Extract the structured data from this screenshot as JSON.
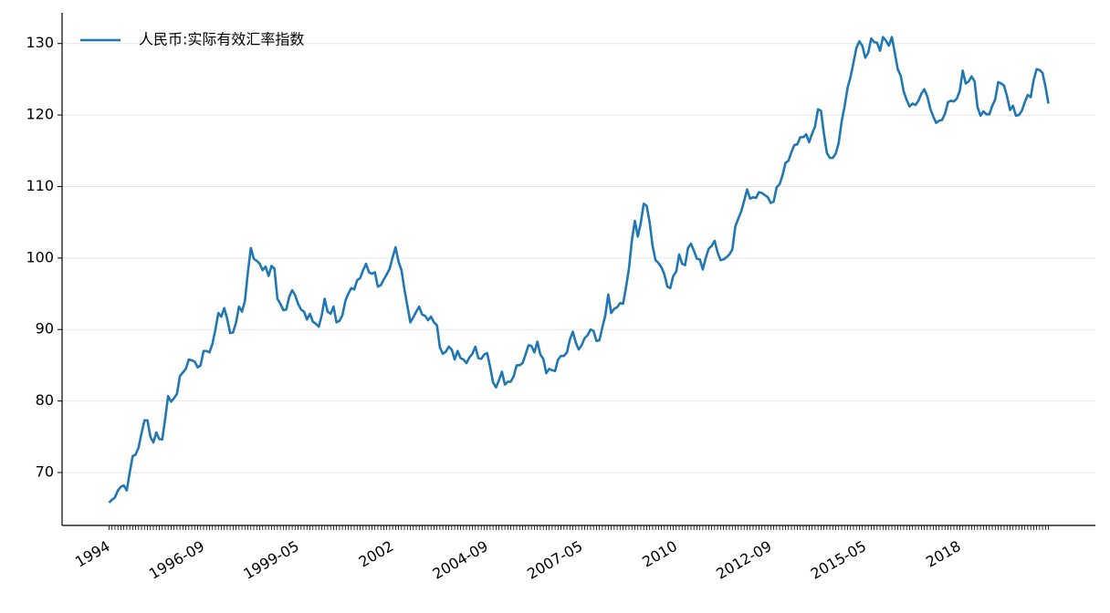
{
  "chart_data": {
    "type": "line",
    "categories": [
      "1994",
      null,
      null,
      null,
      null,
      null,
      null,
      null,
      null,
      null,
      null,
      null,
      null,
      null,
      null,
      null,
      null,
      null,
      null,
      null,
      null,
      null,
      null,
      null,
      null,
      null,
      null,
      null,
      null,
      null,
      null,
      null,
      "1996-09",
      null,
      null,
      null,
      null,
      null,
      null,
      null,
      null,
      null,
      null,
      null,
      null,
      null,
      null,
      null,
      null,
      null,
      null,
      null,
      null,
      null,
      null,
      null,
      null,
      null,
      null,
      null,
      null,
      null,
      null,
      null,
      "1999-05",
      null,
      null,
      null,
      null,
      null,
      null,
      null,
      null,
      null,
      null,
      null,
      null,
      null,
      null,
      null,
      null,
      null,
      null,
      null,
      null,
      null,
      null,
      null,
      null,
      null,
      null,
      null,
      null,
      null,
      null,
      null,
      "2002",
      null,
      null,
      null,
      null,
      null,
      null,
      null,
      null,
      null,
      null,
      null,
      null,
      null,
      null,
      null,
      null,
      null,
      null,
      null,
      null,
      null,
      null,
      null,
      null,
      null,
      null,
      null,
      null,
      null,
      null,
      null,
      "2004-09",
      null,
      null,
      null,
      null,
      null,
      null,
      null,
      null,
      null,
      null,
      null,
      null,
      null,
      null,
      null,
      null,
      null,
      null,
      null,
      null,
      null,
      null,
      null,
      null,
      null,
      null,
      null,
      null,
      null,
      null,
      null,
      "2007-05",
      null,
      null,
      null,
      null,
      null,
      null,
      null,
      null,
      null,
      null,
      null,
      null,
      null,
      null,
      null,
      null,
      null,
      null,
      null,
      null,
      null,
      null,
      null,
      null,
      null,
      null,
      null,
      null,
      null,
      null,
      null,
      "2010",
      null,
      null,
      null,
      null,
      null,
      null,
      null,
      null,
      null,
      null,
      null,
      null,
      null,
      null,
      null,
      null,
      null,
      null,
      null,
      null,
      null,
      null,
      null,
      null,
      null,
      null,
      null,
      null,
      null,
      null,
      null,
      "2012-09",
      null,
      null,
      null,
      null,
      null,
      null,
      null,
      null,
      null,
      null,
      null,
      null,
      null,
      null,
      null,
      null,
      null,
      null,
      null,
      null,
      null,
      null,
      null,
      null,
      null,
      null,
      null,
      null,
      null,
      null,
      null,
      "2015-05",
      null,
      null,
      null,
      null,
      null,
      null,
      null,
      null,
      null,
      null,
      null,
      null,
      null,
      null,
      null,
      null,
      null,
      null,
      null,
      null,
      null,
      null,
      null,
      null,
      null,
      null,
      null,
      null,
      null,
      null,
      null,
      "2018",
      null,
      null,
      null,
      null,
      null,
      null,
      null,
      null,
      null,
      null,
      null,
      null,
      null,
      null,
      null,
      null,
      null,
      null,
      null,
      null,
      null,
      null,
      null,
      null,
      null,
      null,
      null,
      null,
      null,
      null
    ],
    "series": [
      {
        "name": "人民币:实际有效汇率指数",
        "color": "#1f77b4",
        "values": [
          65.8,
          66.2,
          66.5,
          67.5,
          68,
          68.2,
          67.5,
          70,
          72.3,
          72.5,
          73.5,
          75.5,
          77.3,
          77.3,
          75,
          74.2,
          75.6,
          74.7,
          74.6,
          77.5,
          80.7,
          79.9,
          80.4,
          81,
          83.5,
          84,
          84.5,
          85.8,
          85.7,
          85.5,
          84.7,
          85,
          87,
          87,
          86.8,
          88,
          90,
          92.3,
          91.8,
          93,
          91.5,
          89.5,
          89.6,
          91,
          93.2,
          92.5,
          94,
          98,
          101.4,
          99.9,
          99.6,
          99.2,
          98.3,
          98.8,
          97.5,
          98.9,
          98.5,
          94.3,
          93.6,
          92.7,
          92.8,
          94.6,
          95.5,
          94.8,
          93.6,
          92.8,
          92.5,
          91.4,
          92.2,
          91.1,
          90.8,
          90.4,
          92,
          94.3,
          92.5,
          92.2,
          93.2,
          91,
          91.2,
          92,
          94,
          95,
          95.8,
          95.6,
          96.9,
          97.2,
          98.3,
          99.2,
          98,
          97.8,
          98,
          96,
          96.2,
          97,
          97.7,
          98.5,
          100.1,
          101.5,
          99.5,
          98.3,
          95.6,
          93.3,
          91,
          91.7,
          92.5,
          93.2,
          92.1,
          91.9,
          91.3,
          91.8,
          91,
          90.6,
          87.5,
          86.6,
          86.9,
          87.6,
          87.2,
          85.8,
          87,
          86,
          85.8,
          85.3,
          86.1,
          86.6,
          87.6,
          86,
          85.9,
          86.5,
          86.7,
          84.8,
          82.6,
          81.9,
          82.9,
          84.1,
          82.3,
          82.7,
          82.7,
          83.5,
          85,
          85,
          85.3,
          86.5,
          87.8,
          87.7,
          86.8,
          88.3,
          86.5,
          85.9,
          83.9,
          84.5,
          84.3,
          84.2,
          85.8,
          86.3,
          86.3,
          86.8,
          88.6,
          89.7,
          88.2,
          87.2,
          87.8,
          88.8,
          89.2,
          90,
          89.8,
          88.4,
          88.5,
          90.3,
          92,
          94.9,
          92.3,
          92.9,
          93.1,
          93.7,
          93.6,
          95.9,
          98.5,
          102.5,
          105.2,
          103,
          104.9,
          107.6,
          107.3,
          105,
          101.7,
          99.7,
          99.3,
          98.7,
          97.7,
          96,
          95.8,
          97.5,
          98.1,
          100.5,
          99.2,
          99,
          101.4,
          102,
          101,
          99.9,
          99.8,
          98.4,
          100,
          101.3,
          101.7,
          102.4,
          100.8,
          99.7,
          99.8,
          100.1,
          100.5,
          101.2,
          104.4,
          105.5,
          106.5,
          108,
          109.6,
          108.3,
          108.5,
          108.4,
          109.2,
          109.1,
          108.8,
          108.5,
          107.7,
          107.9,
          109.9,
          110.3,
          111.6,
          113.3,
          113.6,
          114.8,
          115.8,
          115.9,
          116.9,
          116.9,
          117.3,
          116.2,
          117.4,
          118.4,
          120.8,
          120.6,
          117.4,
          114.7,
          114,
          114,
          114.6,
          116.1,
          119.1,
          121.2,
          123.8,
          125.3,
          127.3,
          129.4,
          130.3,
          129.7,
          128,
          128.7,
          130.7,
          130.2,
          130.1,
          129,
          130.9,
          130.4,
          129.7,
          130.9,
          128.7,
          126.4,
          125.5,
          123.3,
          122.1,
          121.2,
          121.6,
          121.4,
          122,
          123,
          123.6,
          122.6,
          120.9,
          119.8,
          118.9,
          119.2,
          119.3,
          120.2,
          121.8,
          122,
          121.9,
          122.3,
          123.4,
          126.2,
          124.4,
          124.7,
          125.4,
          124.7,
          121.1,
          119.9,
          120.5,
          120.1,
          120.1,
          121.3,
          122.2,
          124.6,
          124.4,
          124.1,
          122.6,
          120.7,
          121.3,
          119.9,
          120,
          120.6,
          121.8,
          122.8,
          122.5,
          124.9,
          126.4,
          126.3,
          125.9,
          124,
          121.6
        ]
      }
    ],
    "ylim": [
      62.6,
      134.3
    ],
    "yticks": [
      70,
      80,
      90,
      100,
      110,
      120,
      130
    ],
    "grid": true,
    "legend": "upper left"
  }
}
